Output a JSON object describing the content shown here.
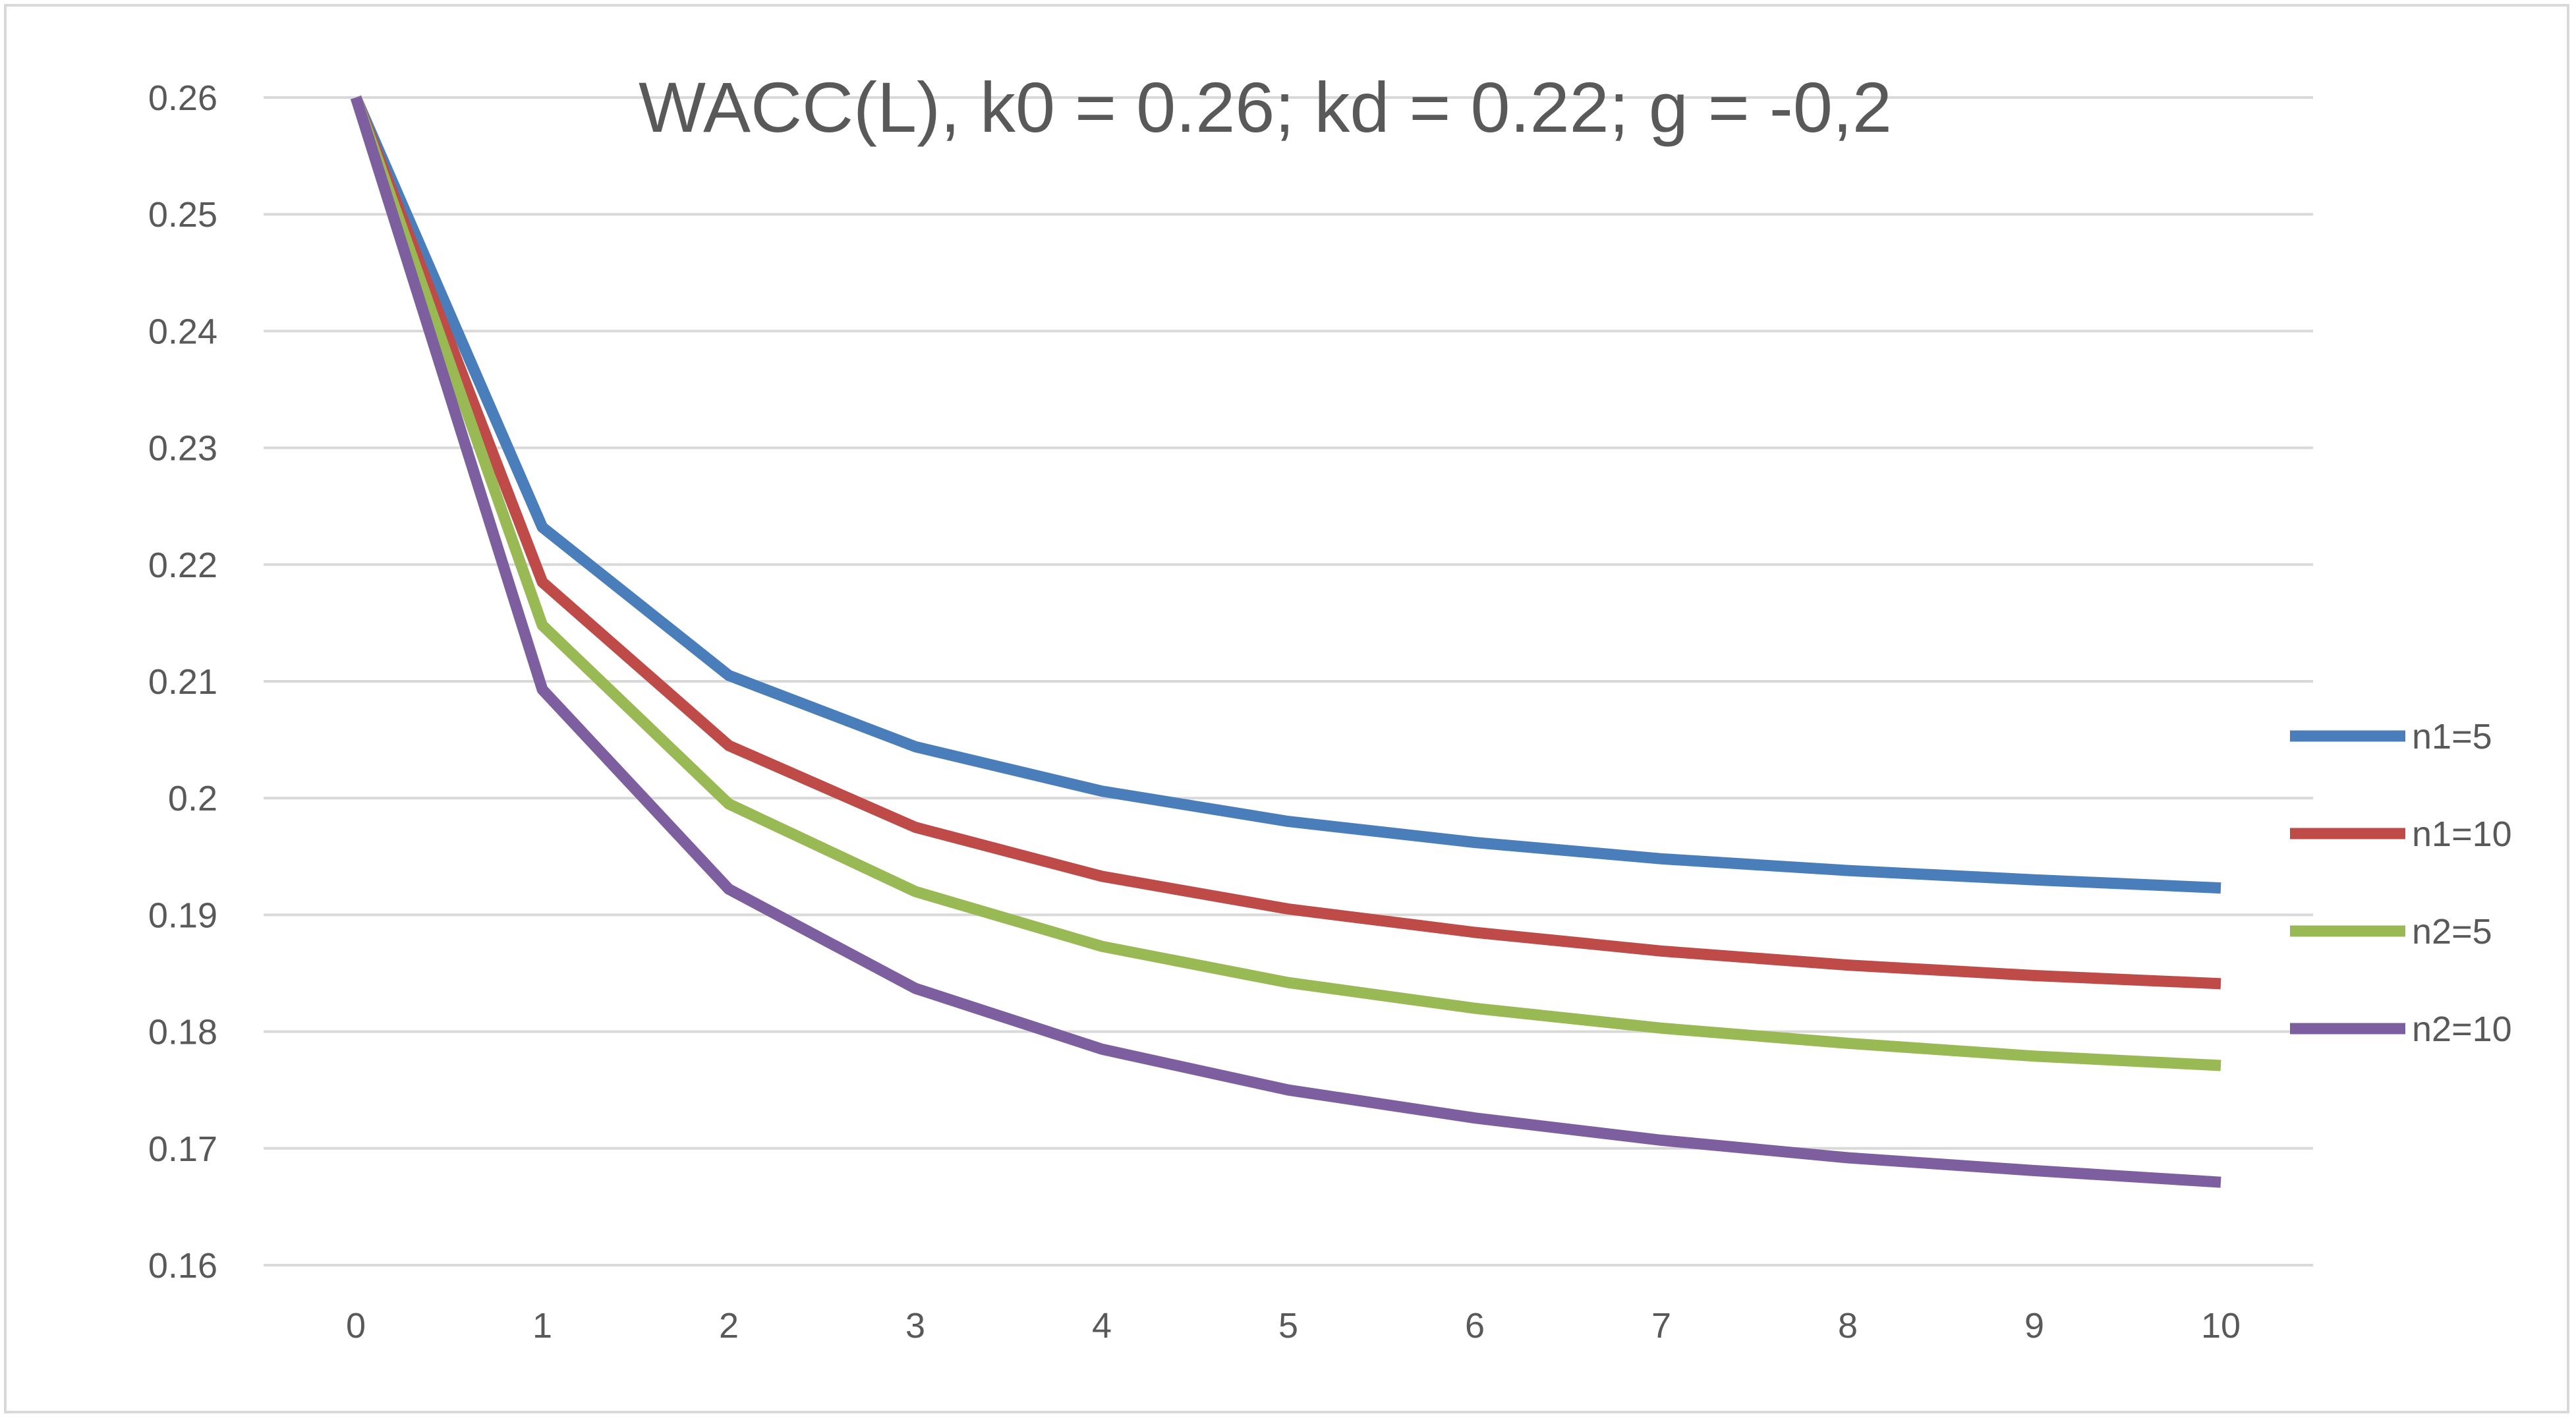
{
  "chart_data": {
    "type": "line",
    "title": "WACC(L), k0 = 0.26; kd = 0.22; g = -0,2",
    "xlabel": "",
    "ylabel": "",
    "x": [
      0,
      1,
      2,
      3,
      4,
      5,
      6,
      7,
      8,
      9,
      10
    ],
    "x_tick_labels": [
      "0",
      "1",
      "2",
      "3",
      "4",
      "5",
      "6",
      "7",
      "8",
      "9",
      "10"
    ],
    "y_tick_labels": [
      "0.16",
      "0.17",
      "0.18",
      "0.19",
      "0.2",
      "0.21",
      "0.22",
      "0.23",
      "0.24",
      "0.25",
      "0.26"
    ],
    "y_ticks": [
      0.16,
      0.17,
      0.18,
      0.19,
      0.2,
      0.21,
      0.22,
      0.23,
      0.24,
      0.25,
      0.26
    ],
    "ylim": [
      0.16,
      0.26
    ],
    "grid": true,
    "legend_position": "right",
    "series": [
      {
        "name": "n1=5",
        "color": "#4a7ebb",
        "values": [
          0.26,
          0.2232,
          0.2105,
          0.2044,
          0.2006,
          0.198,
          0.1962,
          0.1948,
          0.1938,
          0.193,
          0.1923
        ]
      },
      {
        "name": "n1=10",
        "color": "#be4b48",
        "values": [
          0.26,
          0.2185,
          0.2045,
          0.1975,
          0.1933,
          0.1905,
          0.1885,
          0.1869,
          0.1857,
          0.1848,
          0.1841
        ]
      },
      {
        "name": "n2=5",
        "color": "#98b954",
        "values": [
          0.26,
          0.2148,
          0.1995,
          0.192,
          0.1873,
          0.1842,
          0.182,
          0.1803,
          0.179,
          0.1779,
          0.1771
        ]
      },
      {
        "name": "n2=10",
        "color": "#7d5fa0",
        "values": [
          0.26,
          0.2093,
          0.1922,
          0.1837,
          0.1785,
          0.175,
          0.1726,
          0.1707,
          0.1692,
          0.1681,
          0.1671
        ]
      }
    ]
  }
}
